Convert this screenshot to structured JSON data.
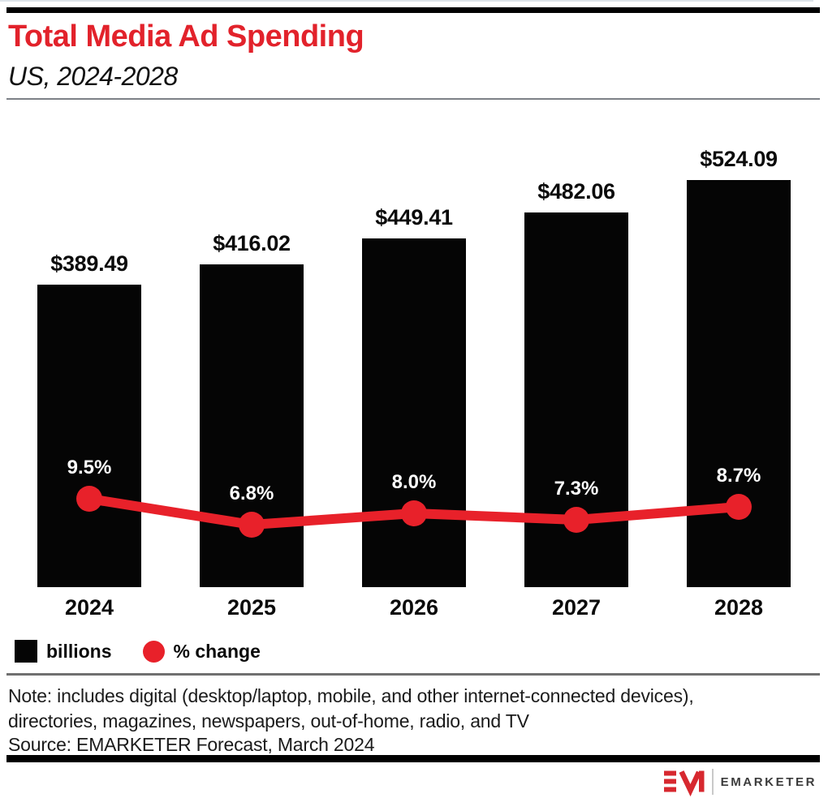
{
  "header": {
    "title": "Total Media Ad Spending",
    "subtitle": "US, 2024-2028"
  },
  "chart_data": {
    "type": "bar",
    "subtype": "bar-with-line-overlay",
    "title": "Total Media Ad Spending",
    "subtitle": "US, 2024-2028",
    "categories": [
      "2024",
      "2025",
      "2026",
      "2027",
      "2028"
    ],
    "series": [
      {
        "name": "billions",
        "type": "bar",
        "values": [
          389.49,
          416.02,
          449.41,
          482.06,
          524.09
        ],
        "labels": [
          "$389.49",
          "$416.02",
          "$449.41",
          "$482.06",
          "$524.09"
        ],
        "color": "#050505"
      },
      {
        "name": "% change",
        "type": "line",
        "values": [
          9.5,
          6.8,
          8.0,
          7.3,
          8.7
        ],
        "labels": [
          "9.5%",
          "6.8%",
          "8.0%",
          "7.3%",
          "8.7%"
        ],
        "color": "#e8212a"
      }
    ],
    "xlabel": "",
    "ylabel": "",
    "grid": false,
    "y_axis_shown": false,
    "legend_position": "bottom-left"
  },
  "legend": {
    "bar_label": "billions",
    "line_label": "% change"
  },
  "note": {
    "line1": "Note: includes digital (desktop/laptop, mobile, and other internet-connected devices),",
    "line2": "directories, magazines, newspapers, out-of-home, radio, and TV"
  },
  "source": "Source: EMARKETER Forecast, March 2024",
  "footer": {
    "brand": "EMARKETER",
    "logo_mark": "em-logo-mark-icon",
    "brand_red": "#d7282f"
  },
  "colors": {
    "accent_red": "#e8212a",
    "bar_black": "#050505",
    "title_red": "#e2222b"
  }
}
